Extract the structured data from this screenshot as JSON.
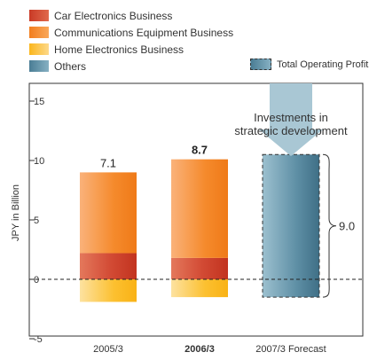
{
  "legend": {
    "items": [
      {
        "label": "Car Electronics Business",
        "color": "#d24a34"
      },
      {
        "label": "Communications Equipment Business",
        "color": "#f58a2c"
      },
      {
        "label": "Home Electronics Business",
        "color": "#fcc030"
      },
      {
        "label": "Others",
        "color": "#5e8fa5"
      }
    ],
    "total_label": "Total Operating Profit"
  },
  "chart_data": {
    "type": "bar",
    "stacked": true,
    "ylabel": "JPY in Billion",
    "ylim": [
      -5,
      17.5
    ],
    "yticks": [
      15,
      10,
      5,
      0,
      -5
    ],
    "grid": false,
    "zero_line": "dashed",
    "categories": [
      "2005/3",
      "2006/3",
      "2007/3 Forecast"
    ],
    "category_bold": [
      false,
      true,
      false
    ],
    "series": [
      {
        "name": "Car Electronics Business",
        "values": [
          2.2,
          1.8,
          null
        ],
        "color": "#d24a34"
      },
      {
        "name": "Communications Equipment Business",
        "values": [
          6.8,
          8.3,
          null
        ],
        "color": "#f58a2c"
      },
      {
        "name": "Home Electronics Business",
        "values": [
          -1.9,
          -1.5,
          null
        ],
        "color": "#fcc030"
      },
      {
        "name": "Others",
        "values": [
          null,
          null,
          10.5
        ],
        "color": "#5e8fa5"
      }
    ],
    "forecast_range": [
      -1.5,
      10.5
    ],
    "totals": [
      "7.1",
      "8.7",
      ""
    ],
    "totals_bold": [
      false,
      true,
      false
    ],
    "annotations": {
      "arrow_text": [
        "Investments in",
        "strategic development"
      ],
      "brace_value": "9.0"
    }
  }
}
